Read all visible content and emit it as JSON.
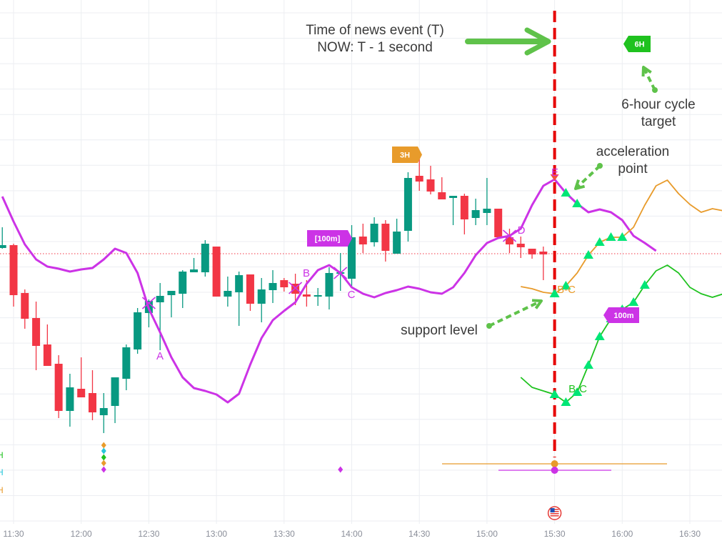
{
  "chart_data": {
    "type": "candlestick",
    "title": "",
    "xlabel": "",
    "ylabel": "",
    "x_ticks": [
      "11:30",
      "12:00",
      "12:30",
      "13:00",
      "13:30",
      "14:00",
      "14:30",
      "15:00",
      "15:30",
      "16:00",
      "16:30"
    ],
    "grid": true,
    "colors": {
      "up": "#089981",
      "down": "#f23645",
      "purple": "#cc33e6",
      "orange": "#e89b2b",
      "green": "#1fc21f",
      "triangle": "#00e676",
      "event_line": "#e60000",
      "arrow": "#5fc24a"
    },
    "candles": [
      [
        "11:25",
        413,
        442,
        412,
        417
      ],
      [
        "11:30",
        417,
        419,
        331,
        347
      ],
      [
        "11:35",
        350,
        355,
        300,
        314
      ],
      [
        "11:40",
        315,
        338,
        242,
        276
      ],
      [
        "11:45",
        278,
        306,
        248,
        248
      ],
      [
        "11:50",
        251,
        263,
        175,
        185
      ],
      [
        "11:55",
        185,
        237,
        163,
        218
      ],
      [
        "12:00",
        216,
        260,
        204,
        204
      ],
      [
        "12:05",
        210,
        242,
        172,
        183
      ],
      [
        "12:10",
        179,
        210,
        154,
        189
      ],
      [
        "12:15",
        192,
        232,
        168,
        232
      ],
      [
        "12:20",
        230,
        278,
        214,
        274
      ],
      [
        "12:25",
        271,
        329,
        265,
        323
      ],
      [
        "12:30",
        322,
        341,
        302,
        339
      ],
      [
        "12:35",
        337,
        364,
        270,
        346
      ],
      [
        "12:40",
        347,
        353,
        316,
        353
      ],
      [
        "12:45",
        349,
        382,
        329,
        380
      ],
      [
        "12:50",
        379,
        399,
        379,
        383
      ],
      [
        "12:55",
        379,
        424,
        373,
        419
      ],
      [
        "13:00",
        415,
        415,
        345,
        345
      ],
      [
        "13:05",
        345,
        373,
        331,
        353
      ],
      [
        "13:10",
        351,
        380,
        304,
        375
      ],
      [
        "13:15",
        376,
        376,
        325,
        335
      ],
      [
        "13:20",
        335,
        371,
        309,
        355
      ],
      [
        "13:25",
        354,
        382,
        336,
        364
      ],
      [
        "13:30",
        368,
        371,
        352,
        358
      ],
      [
        "13:35",
        363,
        377,
        333,
        349
      ],
      [
        "13:40",
        348,
        368,
        331,
        345
      ],
      [
        "13:45",
        346,
        357,
        332,
        347
      ],
      [
        "13:50",
        345,
        386,
        327,
        378
      ],
      [
        "13:55",
        377,
        406,
        353,
        379
      ],
      [
        "14:00",
        370,
        445,
        357,
        428
      ],
      [
        "14:05",
        429,
        447,
        406,
        418
      ],
      [
        "14:10",
        421,
        456,
        415,
        447
      ],
      [
        "14:15",
        447,
        452,
        394,
        409
      ],
      [
        "14:20",
        405,
        454,
        405,
        436
      ],
      [
        "14:25",
        437,
        519,
        422,
        511
      ],
      [
        "14:30",
        514,
        548,
        493,
        506
      ],
      [
        "14:35",
        509,
        528,
        488,
        492
      ],
      [
        "14:40",
        491,
        512,
        481,
        481
      ],
      [
        "14:45",
        483,
        486,
        445,
        486
      ],
      [
        "14:50",
        486,
        489,
        432,
        453
      ],
      [
        "14:55",
        455,
        482,
        445,
        466
      ],
      [
        "15:00",
        462,
        511,
        445,
        468
      ],
      [
        "15:05",
        468,
        468,
        428,
        428
      ],
      [
        "15:10",
        428,
        440,
        406,
        418
      ],
      [
        "15:15",
        419,
        429,
        399,
        414
      ],
      [
        "15:20",
        412,
        412,
        398,
        404
      ],
      [
        "15:25",
        408,
        415,
        368,
        404
      ]
    ],
    "last_price": 405,
    "series": [
      {
        "color": "purple",
        "start": "11:25",
        "values": [
          485,
          450,
          418,
          397,
          387,
          384,
          380,
          383,
          385,
          397,
          412,
          406,
          378,
          328,
          295,
          260,
          232,
          217,
          213,
          208,
          197,
          209,
          250,
          287,
          312,
          325,
          337,
          363,
          382,
          389,
          378,
          358,
          349,
          344,
          350,
          354,
          359,
          356,
          351,
          349,
          358,
          378,
          403,
          420,
          427,
          430,
          440,
          473,
          500,
          509,
          490,
          475,
          463,
          467,
          463,
          452,
          430,
          420,
          409
        ],
        "triangles": [
          "15:35",
          "15:40"
        ]
      },
      {
        "color": "orange",
        "start": "15:15",
        "values": [
          359,
          356,
          351,
          349,
          360,
          378,
          403,
          421,
          428,
          428,
          442,
          473,
          500,
          508,
          489,
          474,
          463,
          468,
          465
        ],
        "triangles": [
          "15:30",
          "15:35",
          "15:45",
          "15:50",
          "15:55",
          "16:00"
        ]
      },
      {
        "color": "green",
        "start": "15:15",
        "values": [
          232,
          218,
          213,
          208,
          197,
          211,
          249,
          289,
          314,
          327,
          337,
          361,
          381,
          389,
          378,
          358,
          349,
          344,
          349
        ],
        "triangles": [
          "15:30",
          "15:35",
          "15:40",
          "15:45",
          "15:50",
          "15:55",
          "16:00",
          "16:05",
          "16:10"
        ]
      }
    ],
    "event_time": "15:30",
    "point_labels": [
      {
        "text": "A",
        "color": "purple"
      },
      {
        "text": "B",
        "color": "purple"
      },
      {
        "text": "C",
        "color": "purple"
      },
      {
        "text": "D",
        "color": "purple"
      },
      {
        "text": "E",
        "color": "purple"
      },
      {
        "text": "B-C",
        "color": "orange"
      },
      {
        "text": "B-C",
        "color": "green"
      }
    ],
    "tags": [
      {
        "text": "3H",
        "color": "orange"
      },
      {
        "text": "[100m]",
        "color": "purple"
      },
      {
        "text": "100m",
        "color": "purple"
      },
      {
        "text": "6H",
        "color": "green"
      }
    ],
    "left_scale_labels": [
      {
        "text": "H",
        "color": "green"
      },
      {
        "text": "H",
        "color": "#26c6da"
      },
      {
        "text": "H",
        "color": "orange"
      }
    ]
  },
  "annotations": {
    "news_event_line1": "Time of news event (T)",
    "news_event_line2": "NOW: T - 1 second",
    "cycle_target_line1": "6-hour cycle",
    "cycle_target_line2": "target",
    "acceleration_line1": "acceleration",
    "acceleration_line2": "point",
    "support_level": "support level"
  },
  "event_icon": "us-flag-icon"
}
